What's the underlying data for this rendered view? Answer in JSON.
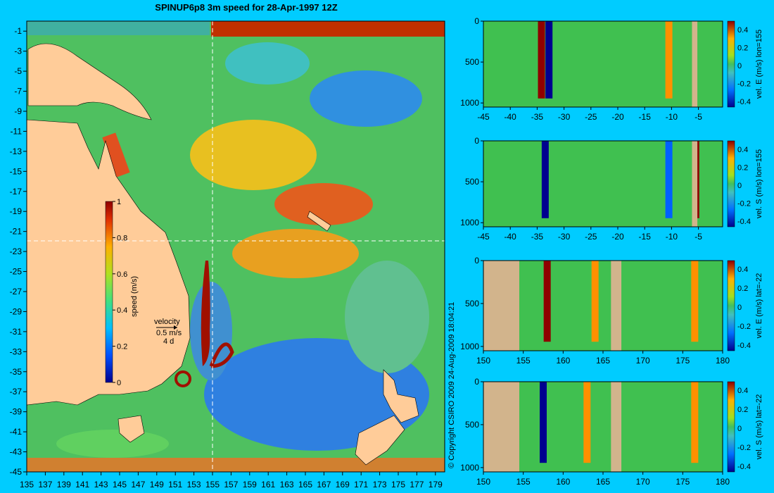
{
  "title": "SPINUP6p8 3m speed for 28-Apr-1997 12Z",
  "copyright": "© Copyright CSIRO 2009   24-Aug-2009 18:04:21",
  "colors": {
    "background": "#00CCFF",
    "land": "#FFCC99",
    "seafloor": "#D2B48C",
    "gridline": "#FFFFFF"
  },
  "map": {
    "x_ticks": [
      "135",
      "137",
      "139",
      "141",
      "143",
      "145",
      "147",
      "149",
      "151",
      "153",
      "155",
      "157",
      "159",
      "161",
      "163",
      "165",
      "167",
      "169",
      "171",
      "173",
      "175",
      "177",
      "179"
    ],
    "y_ticks": [
      "-1",
      "-3",
      "-5",
      "-7",
      "-9",
      "-11",
      "-13",
      "-15",
      "-17",
      "-19",
      "-21",
      "-23",
      "-25",
      "-27",
      "-29",
      "-31",
      "-33",
      "-35",
      "-37",
      "-39",
      "-41",
      "-43",
      "-45"
    ],
    "section_lon": 155,
    "section_lat": -22,
    "colorbar": {
      "label": "speed (m/s)",
      "ticks": [
        "0",
        "0.2",
        "0.4",
        "0.6",
        "0.8",
        "1"
      ]
    },
    "velocity_key": {
      "label": "velocity",
      "speed": "0.5 m/s",
      "time": "4 d"
    }
  },
  "chart_data": [
    {
      "type": "heatmap",
      "panel": "top-right-1",
      "ylabel": "vel. E (m/s) lon=155",
      "x_ticks": [
        "-45",
        "-40",
        "-35",
        "-30",
        "-25",
        "-20",
        "-15",
        "-10",
        "-5"
      ],
      "y_ticks": [
        "0",
        "500",
        "1000"
      ],
      "xlim": [
        -45,
        -0.5
      ],
      "ylim": [
        1050,
        0
      ],
      "colorbar_ticks": [
        "0.4",
        "0.2",
        "0",
        "-0.2",
        "-0.4"
      ],
      "features": [
        {
          "x": -34.2,
          "value": 0.45
        },
        {
          "x": -32.8,
          "value": -0.45
        },
        {
          "x": -10.5,
          "value": 0.3
        }
      ]
    },
    {
      "type": "heatmap",
      "panel": "top-right-2",
      "ylabel": "vel. S (m/s) lon=155",
      "x_ticks": [
        "-45",
        "-40",
        "-35",
        "-30",
        "-25",
        "-20",
        "-15",
        "-10",
        "-5"
      ],
      "y_ticks": [
        "0",
        "500",
        "1000"
      ],
      "xlim": [
        -45,
        -0.5
      ],
      "ylim": [
        1050,
        0
      ],
      "colorbar_ticks": [
        "0.4",
        "0.2",
        "0",
        "-0.2",
        "-0.4"
      ],
      "features": [
        {
          "x": -33.5,
          "value": -0.45
        },
        {
          "x": -10.5,
          "value": -0.3
        },
        {
          "x": -5.5,
          "value": 0.4
        }
      ]
    },
    {
      "type": "heatmap",
      "panel": "bottom-right-1",
      "ylabel": "vel. E (m/s) lat=-22",
      "x_ticks": [
        "150",
        "155",
        "160",
        "165",
        "170",
        "175",
        "180"
      ],
      "y_ticks": [
        "0",
        "500",
        "1000"
      ],
      "xlim": [
        150,
        180
      ],
      "ylim": [
        1050,
        0
      ],
      "colorbar_ticks": [
        "0.4",
        "0.2",
        "0",
        "-0.2",
        "-0.4"
      ],
      "features": [
        {
          "x": 158,
          "value": 0.45
        },
        {
          "x": 164,
          "value": 0.3
        },
        {
          "x": 176.5,
          "value": 0.3
        }
      ]
    },
    {
      "type": "heatmap",
      "panel": "bottom-right-2",
      "ylabel": "vel. S (m/s) lat=-22",
      "x_ticks": [
        "150",
        "155",
        "160",
        "165",
        "170",
        "175",
        "180"
      ],
      "y_ticks": [
        "0",
        "500",
        "1000"
      ],
      "xlim": [
        150,
        180
      ],
      "ylim": [
        1050,
        0
      ],
      "colorbar_ticks": [
        "0.4",
        "0.2",
        "0",
        "-0.2",
        "-0.4"
      ],
      "features": [
        {
          "x": 157.5,
          "value": -0.45
        },
        {
          "x": 163,
          "value": 0.35
        },
        {
          "x": 176.5,
          "value": 0.35
        }
      ]
    }
  ]
}
